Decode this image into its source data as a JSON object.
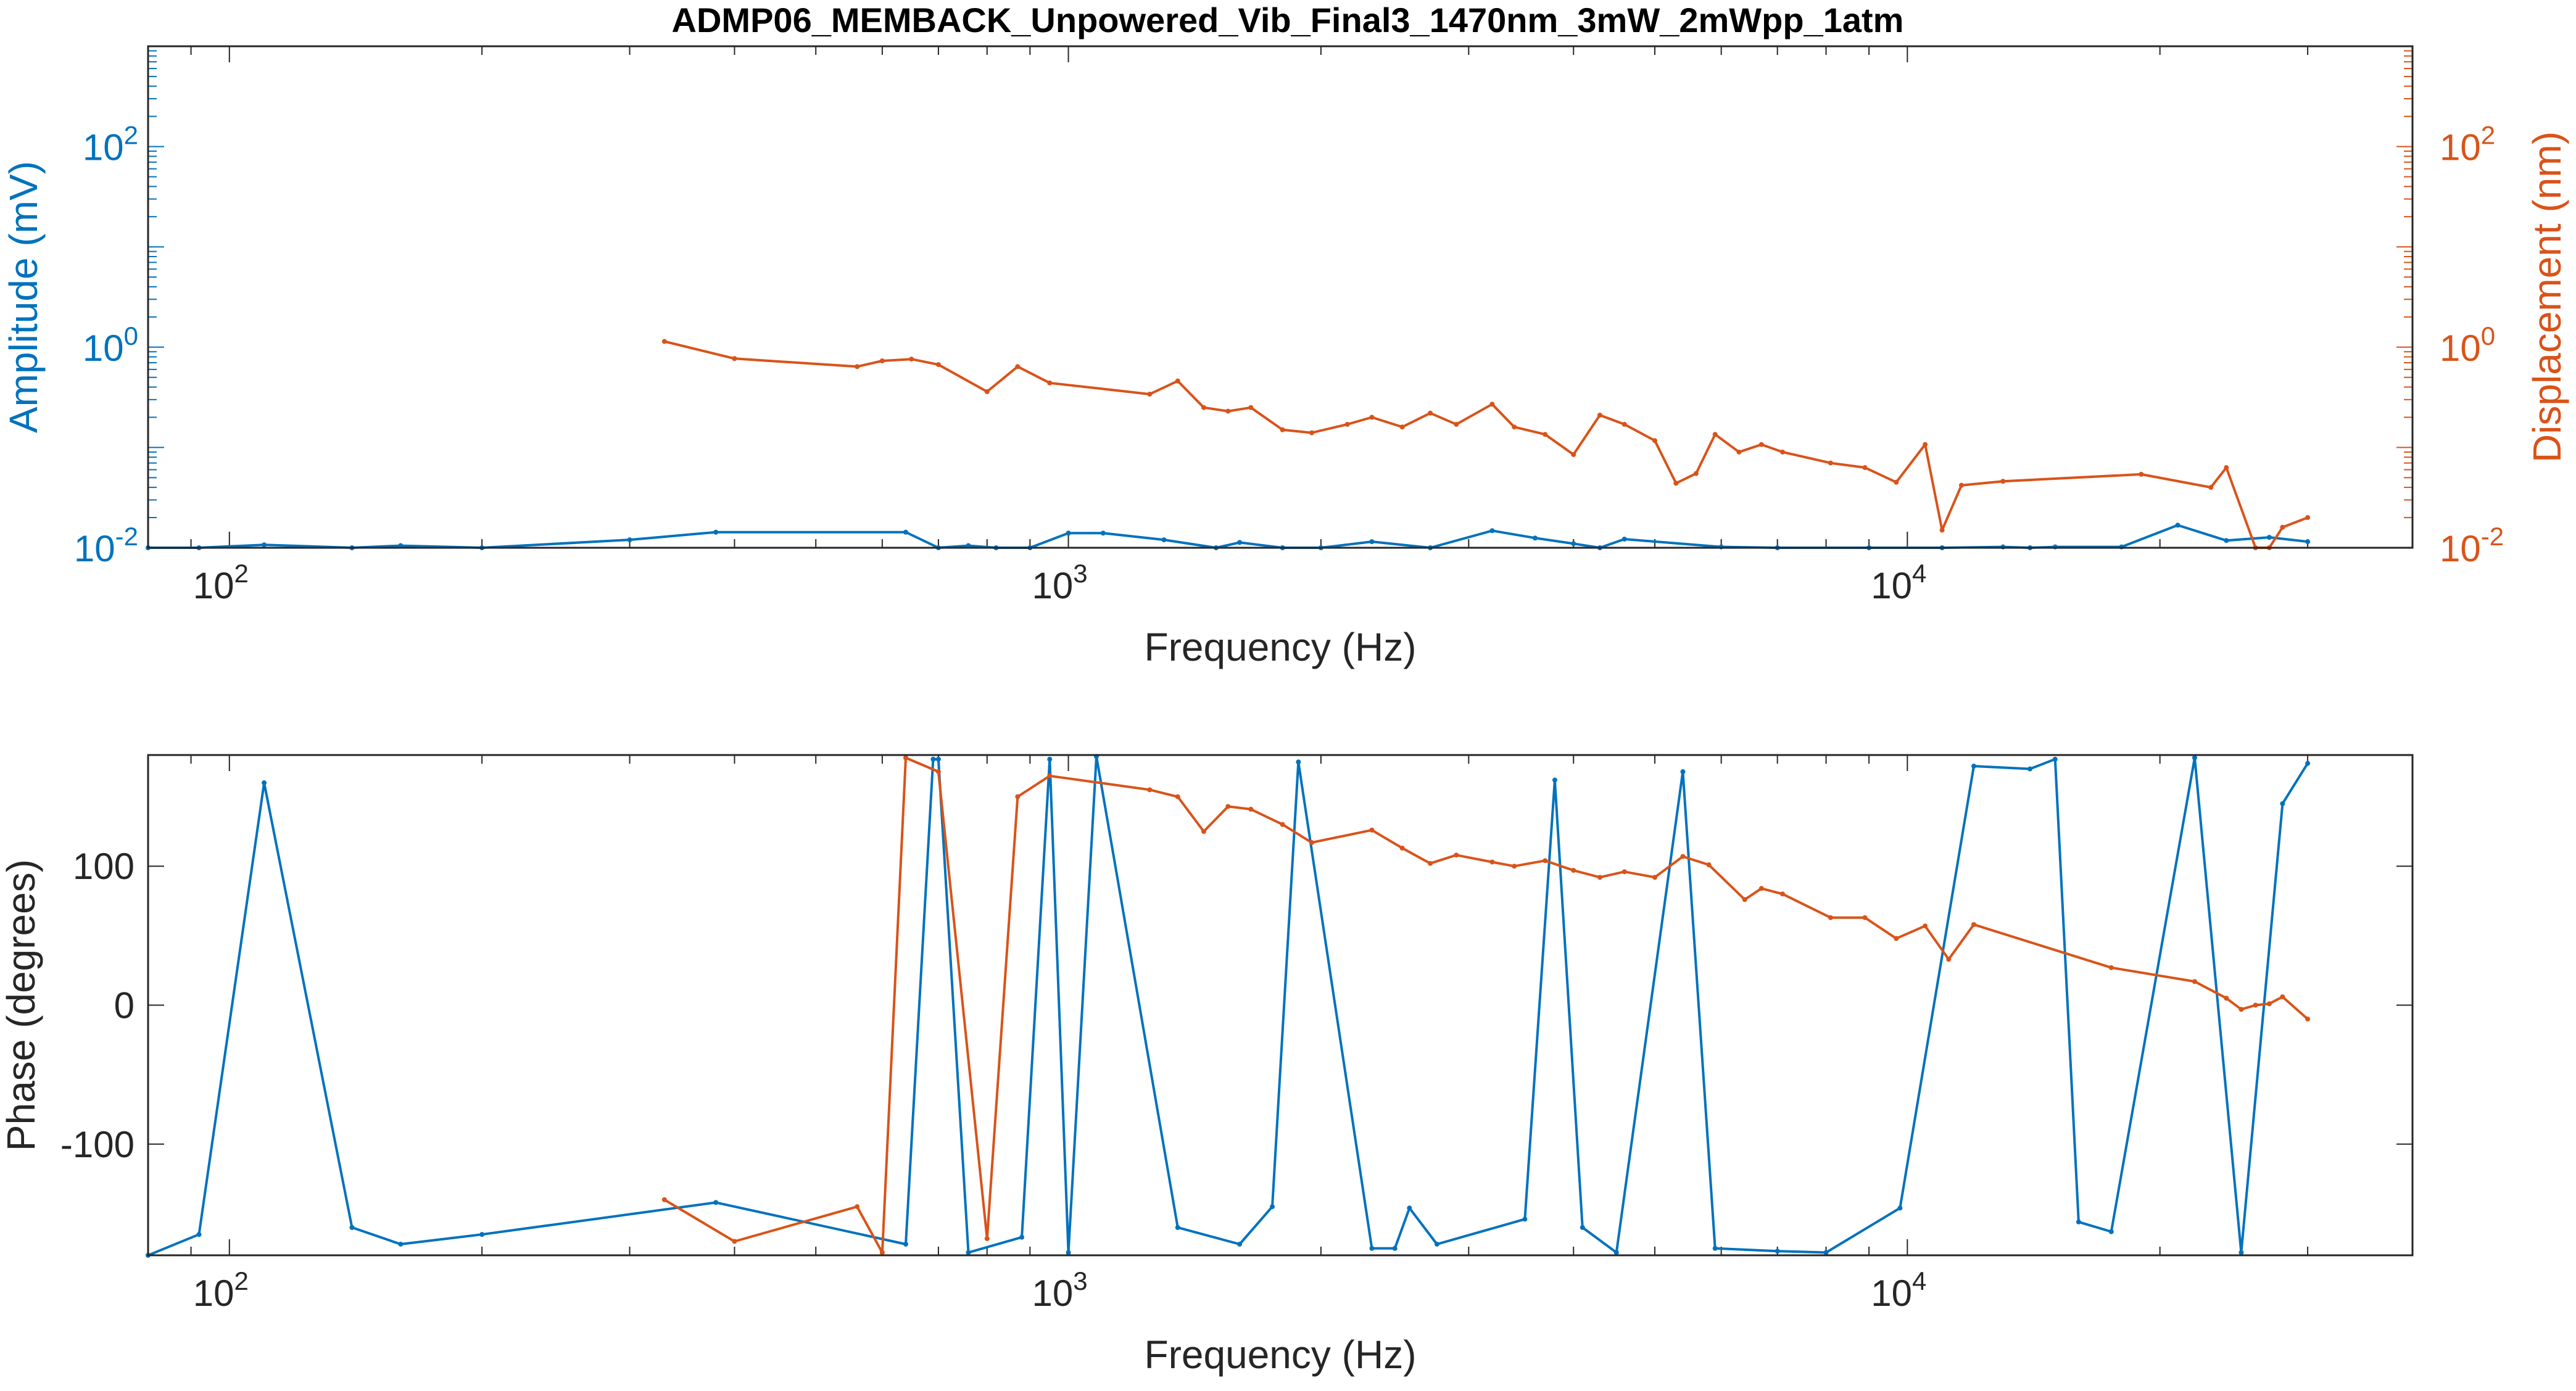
{
  "figure": {
    "title": "ADMP06_MEMBACK_Unpowered_Vib_Final3_1470nm_3mW_2mWpp_1atm"
  },
  "colors": {
    "blue": "#0072BD",
    "orange": "#D95319",
    "axis": "#262626",
    "grid": "#262626"
  },
  "chart_data": [
    {
      "type": "line",
      "scale": {
        "x": "log",
        "y_left": "log",
        "y_right": "log"
      },
      "title": "ADMP06_MEMBACK_Unpowered_Vib_Final3_1470nm_3mW_2mWpp_1atm",
      "xlabel": "Frequency (Hz)",
      "ylabel": "Amplitude (mV)",
      "ylabel_right": "Displacement (nm)",
      "xlim": [
        80,
        40000
      ],
      "ylim": [
        0.01,
        1000
      ],
      "ylim_right": [
        0.01,
        1000
      ],
      "x_ticks": [
        {
          "value": 100,
          "base": "10",
          "exp": "2"
        },
        {
          "value": 1000,
          "base": "10",
          "exp": "3"
        },
        {
          "value": 10000,
          "base": "10",
          "exp": "4"
        }
      ],
      "y_ticks": [
        {
          "value": 0.01,
          "base": "10",
          "exp": "-2"
        },
        {
          "value": 1,
          "base": "10",
          "exp": "0"
        },
        {
          "value": 100,
          "base": "10",
          "exp": "2"
        }
      ],
      "y_ticks_right": [
        {
          "value": 0.01,
          "base": "10",
          "exp": "-2"
        },
        {
          "value": 1,
          "base": "10",
          "exp": "0"
        },
        {
          "value": 100,
          "base": "10",
          "exp": "2"
        }
      ],
      "series": [
        {
          "axis": "left",
          "color": "#0072BD",
          "x": [
            80,
            92,
            110,
            140,
            160,
            200,
            300,
            380,
            640,
            700,
            760,
            820,
            900,
            1000,
            1100,
            1300,
            1500,
            1600,
            1800,
            2000,
            2300,
            2700,
            3200,
            3600,
            4000,
            4300,
            4600,
            6000,
            7000,
            9000,
            11000,
            13000,
            14000,
            15000,
            18000,
            21000,
            24000,
            27000,
            30000
          ],
          "y": [
            0.01,
            0.01,
            0.0107,
            0.0095,
            0.0105,
            0.0095,
            0.012,
            0.0143,
            0.0143,
            0.009,
            0.0105,
            0.0093,
            0.0087,
            0.014,
            0.014,
            0.012,
            0.0085,
            0.0113,
            0.0085,
            0.009,
            0.0115,
            0.0085,
            0.0148,
            0.0125,
            0.011,
            0.0087,
            0.0122,
            0.0102,
            0.0097,
            0.01,
            0.01,
            0.0102,
            0.0097,
            0.0102,
            0.0102,
            0.0168,
            0.0118,
            0.0127,
            0.0115
          ]
        },
        {
          "axis": "right",
          "color": "#D95319",
          "x": [
            330,
            400,
            560,
            600,
            650,
            700,
            800,
            870,
            950,
            1250,
            1350,
            1450,
            1550,
            1650,
            1800,
            1950,
            2150,
            2300,
            2500,
            2700,
            2900,
            3200,
            3400,
            3700,
            4000,
            4300,
            4600,
            5000,
            5300,
            5600,
            5900,
            6300,
            6700,
            7100,
            8100,
            8900,
            9700,
            10500,
            11000,
            11600,
            13000,
            19000,
            23000,
            24000,
            26000,
            27000,
            28000,
            30000
          ],
          "y": [
            1.14,
            0.77,
            0.64,
            0.73,
            0.76,
            0.67,
            0.36,
            0.64,
            0.44,
            0.34,
            0.46,
            0.25,
            0.23,
            0.25,
            0.15,
            0.14,
            0.17,
            0.2,
            0.16,
            0.22,
            0.17,
            0.27,
            0.16,
            0.135,
            0.085,
            0.21,
            0.17,
            0.117,
            0.044,
            0.055,
            0.135,
            0.09,
            0.107,
            0.09,
            0.07,
            0.063,
            0.045,
            0.107,
            0.015,
            0.042,
            0.046,
            0.054,
            0.04,
            0.063,
            0.01,
            0.009,
            0.016,
            0.02
          ]
        }
      ]
    },
    {
      "type": "line",
      "scale": {
        "x": "log",
        "y": "linear"
      },
      "xlabel": "Frequency (Hz)",
      "ylabel": "Phase (degrees)",
      "xlim": [
        80,
        40000
      ],
      "ylim": [
        -180,
        180
      ],
      "x_ticks": [
        {
          "value": 100,
          "base": "10",
          "exp": "2"
        },
        {
          "value": 1000,
          "base": "10",
          "exp": "3"
        },
        {
          "value": 10000,
          "base": "10",
          "exp": "4"
        }
      ],
      "y_ticks": [
        {
          "value": -100,
          "label": "-100"
        },
        {
          "value": 0,
          "label": "0"
        },
        {
          "value": 100,
          "label": "100"
        }
      ],
      "series": [
        {
          "color": "#0072BD",
          "x": [
            80,
            92,
            110,
            140,
            160,
            200,
            380,
            640,
            690,
            700,
            760,
            880,
            950,
            1000,
            1080,
            1350,
            1600,
            1750,
            1880,
            2300,
            2450,
            2550,
            2750,
            3500,
            3800,
            4100,
            4500,
            5400,
            5900,
            7000,
            8000,
            9800,
            12000,
            14000,
            15000,
            16000,
            17500,
            22000,
            25000,
            28000,
            30000
          ],
          "y": [
            -180,
            -165,
            160,
            -160,
            -172,
            -165,
            -142,
            -172,
            177,
            177,
            -178,
            -167,
            177,
            -178,
            179,
            -160,
            -172,
            -145,
            175,
            -175,
            -175,
            -146,
            -172,
            -154,
            162,
            -160,
            -178,
            168,
            -175,
            -177,
            -178,
            -146,
            172,
            170,
            177,
            -156,
            -163,
            178,
            -178,
            145,
            174
          ]
        },
        {
          "color": "#D95319",
          "x": [
            330,
            400,
            560,
            600,
            640,
            700,
            800,
            870,
            950,
            1250,
            1350,
            1450,
            1550,
            1650,
            1800,
            1950,
            2300,
            2500,
            2700,
            2900,
            3200,
            3400,
            3700,
            4000,
            4300,
            4600,
            5000,
            5400,
            5800,
            6400,
            6700,
            7100,
            8100,
            8900,
            9700,
            10500,
            11200,
            12000,
            17500,
            22000,
            24000,
            25000,
            26000,
            27000,
            28000,
            30000
          ],
          "y": [
            -140,
            -170,
            -145,
            -178,
            178,
            168,
            -168,
            150,
            165,
            155,
            150,
            125,
            143,
            141,
            130,
            117,
            126,
            113,
            102,
            108,
            103,
            100,
            104,
            97,
            92,
            96,
            92,
            107,
            101,
            76,
            84,
            80,
            63,
            63,
            48,
            57,
            33,
            58,
            27,
            17,
            5,
            -3,
            0,
            1,
            6,
            -10
          ]
        }
      ]
    }
  ]
}
